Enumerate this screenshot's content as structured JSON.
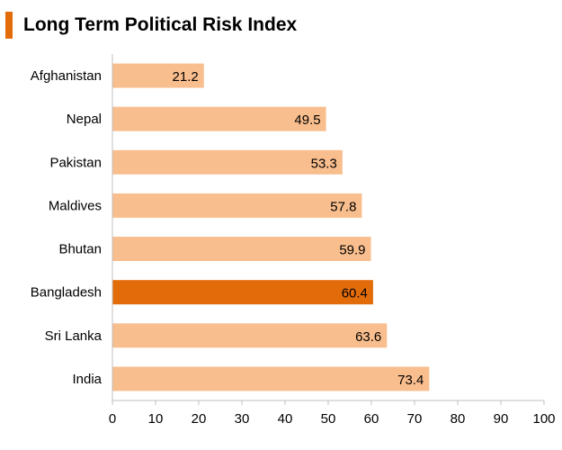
{
  "chart_data": {
    "type": "bar",
    "orientation": "horizontal",
    "title": "Long Term Political Risk Index",
    "categories": [
      "Afghanistan",
      "Nepal",
      "Pakistan",
      "Maldives",
      "Bhutan",
      "Bangladesh",
      "Sri Lanka",
      "India"
    ],
    "values": [
      21.2,
      49.5,
      53.3,
      57.8,
      59.9,
      60.4,
      63.6,
      73.4
    ],
    "value_labels": [
      "21.2",
      "49.5",
      "53.3",
      "57.8",
      "59.9",
      "60.4",
      "63.6",
      "73.4"
    ],
    "highlight": "Bangladesh",
    "xlim": [
      0,
      100
    ],
    "xticks": [
      0,
      10,
      20,
      30,
      40,
      50,
      60,
      70,
      80,
      90,
      100
    ],
    "xtick_labels": [
      "0",
      "10",
      "20",
      "30",
      "40",
      "50",
      "60",
      "70",
      "80",
      "90",
      "100"
    ],
    "xlabel": "",
    "ylabel": "",
    "grid": false,
    "colors": {
      "bar": "#f9be8e",
      "highlight": "#e36c0a",
      "accent": "#e36c0a",
      "axis": "#bfbfbf",
      "text": "#000000"
    }
  }
}
